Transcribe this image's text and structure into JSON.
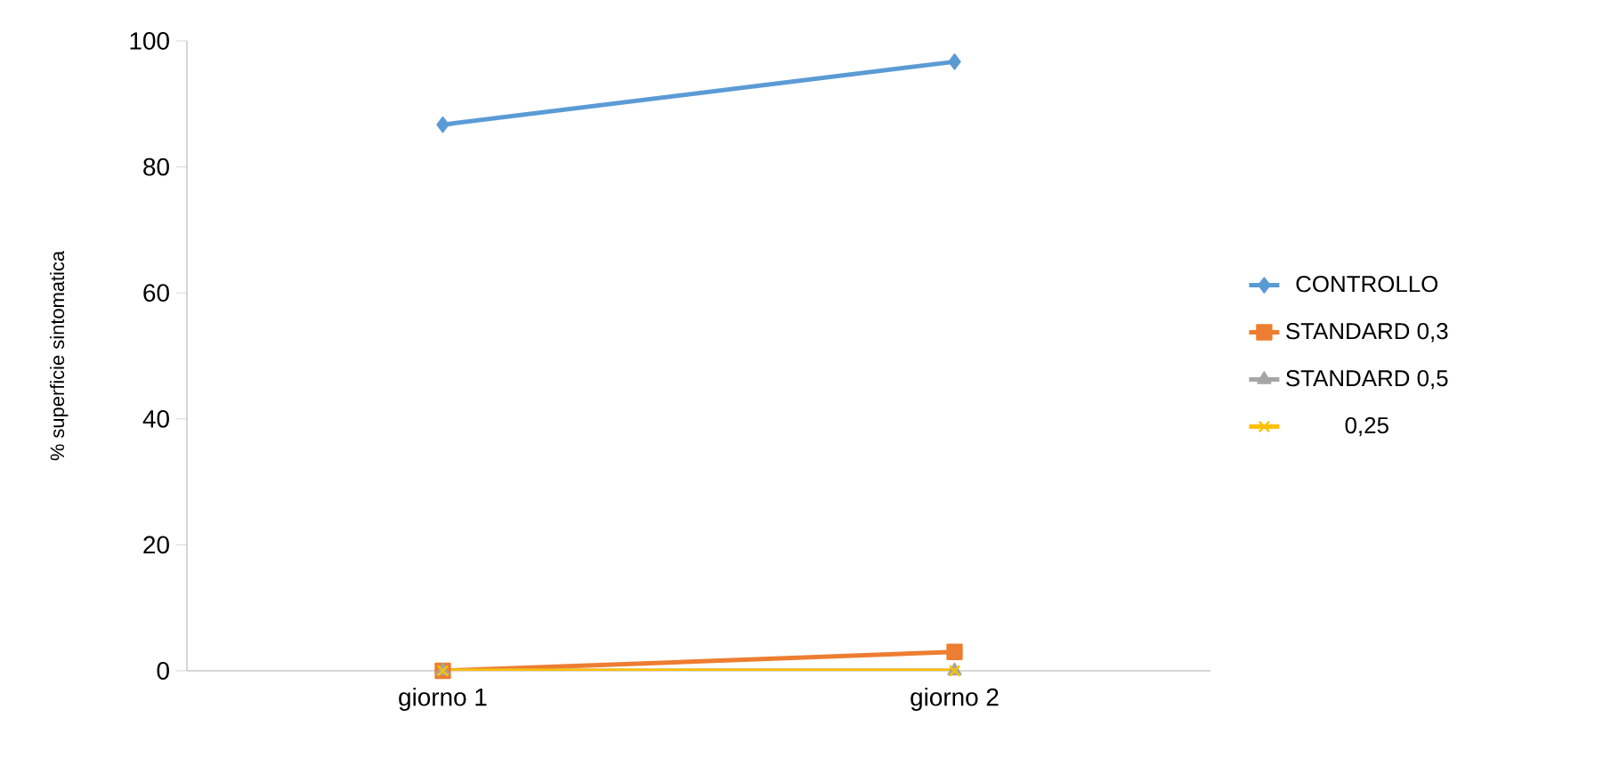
{
  "chart_data": {
    "type": "line",
    "ylabel": "% superficie sintomatica",
    "categories": [
      "giorno 1",
      "giorno 2"
    ],
    "series": [
      {
        "name": "CONTROLLO",
        "color": "#5b9bd5",
        "marker": "diamond",
        "values": [
          86.7,
          96.7
        ]
      },
      {
        "name": "STANDARD 0,3",
        "color": "#ed7d31",
        "marker": "square",
        "values": [
          0,
          3
        ]
      },
      {
        "name": "STANDARD 0,5",
        "color": "#a5a5a5",
        "marker": "triangle",
        "values": [
          0,
          0
        ]
      },
      {
        "name": "0,25",
        "color": "#ffc000",
        "marker": "cross",
        "values": [
          0,
          0
        ]
      }
    ],
    "ylim": [
      0,
      100
    ],
    "yticks": [
      0,
      20,
      40,
      60,
      80,
      100
    ],
    "grid": false,
    "legend": "right"
  }
}
